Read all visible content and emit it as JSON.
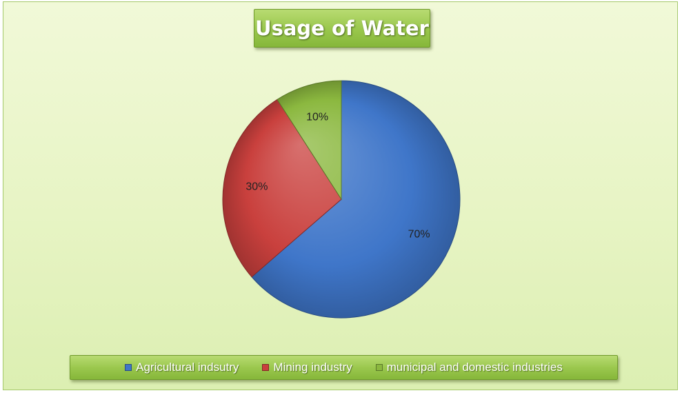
{
  "chart_data": {
    "type": "pie",
    "title": "Usage of Water",
    "categories": [
      "Agricultural indsutry",
      "Mining industry",
      "municipal and domestic industries"
    ],
    "values": [
      70,
      30,
      10
    ],
    "data_labels": [
      "70%",
      "30%",
      "10%"
    ],
    "colors": [
      "#3f76c9",
      "#c9403d",
      "#8bb83f"
    ],
    "legend_position": "bottom"
  }
}
